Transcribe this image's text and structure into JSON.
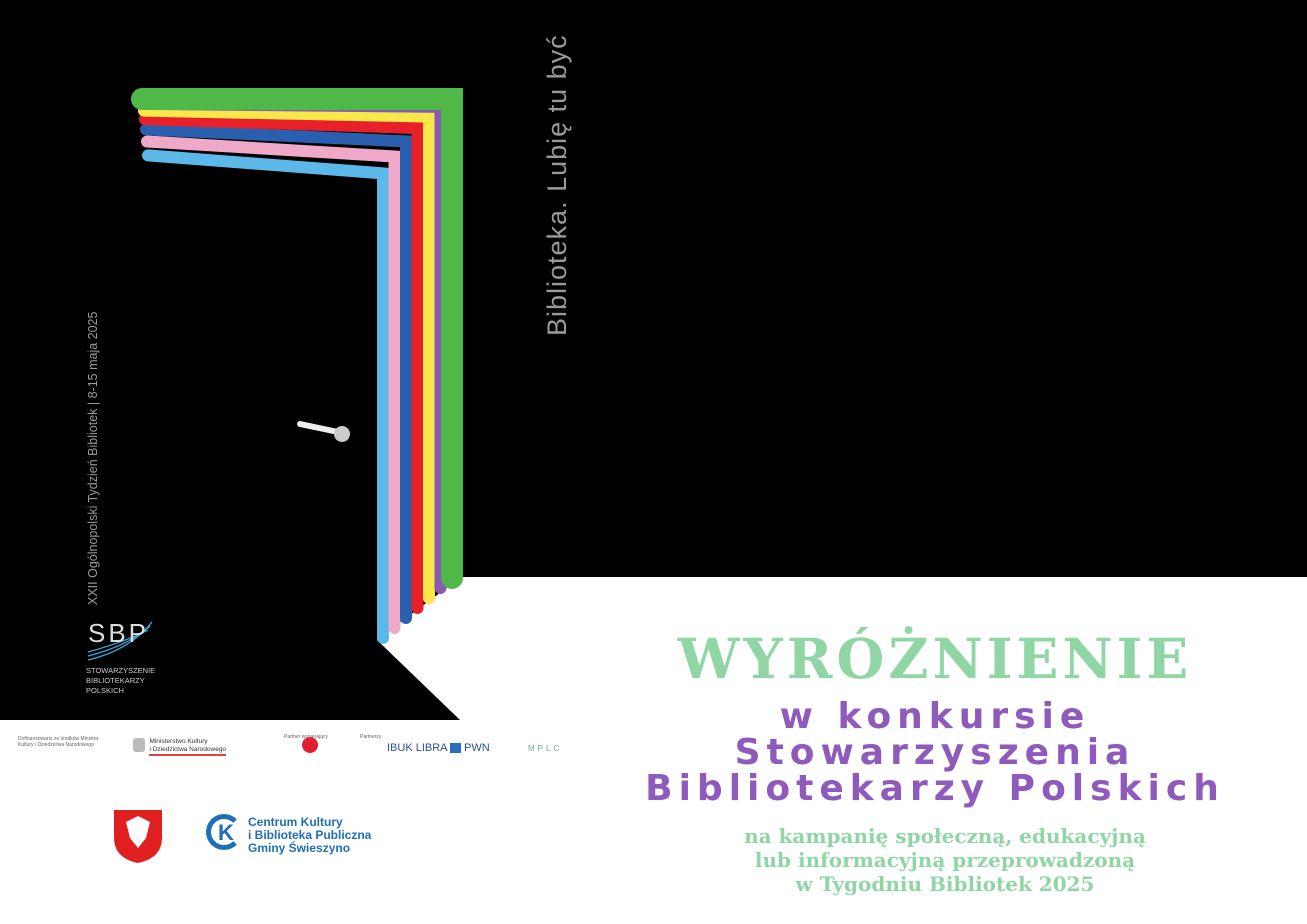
{
  "poster": {
    "slogan": "Biblioteka. Lubię tu być",
    "event": "XXII Ogólnopolski Tydzień Bibliotek | 8-15 maja 2025",
    "sbp_logo": "SBP",
    "sbp_name": [
      "STOWARZYSZENIE",
      "BIBLIOTEKARZY",
      "POLSKICH"
    ],
    "stripe_colors": [
      "#5bb8e8",
      "#f0a8c8",
      "#2a5fb0",
      "#e8202a",
      "#f8e84a",
      "#8a5ab0",
      "#50b848"
    ]
  },
  "sponsors": {
    "funding_note": "Dofinansowano ze środków Ministra Kultury i Dziedzictwa Narodowego",
    "ministry": [
      "Ministerstwo Kultury",
      "i Dziedzictwa Narodowego"
    ],
    "partner_label": "Partner wspierający",
    "partners_label": "Partnerzy",
    "ibuk": "IBUK LIBRA",
    "pwn": "PWN",
    "mplc": "MPLC"
  },
  "local": {
    "ck_line1": "Centrum Kultury",
    "ck_line2": "i Biblioteka Publiczna",
    "ck_line3": "Gminy Świeszyno"
  },
  "award": {
    "title": "WYRÓŻNIENIE",
    "line1": "w konkursie",
    "line2": "Stowarzyszenia",
    "line3": "Bibliotekarzy Polskich",
    "desc1": "na kampanię społeczną, edukacyjną",
    "desc2": "lub informacyjną przeprowadzoną",
    "desc3": "w Tygodniu Bibliotek 2025"
  },
  "colors": {
    "black": "#000000",
    "green": "#8fd6a4",
    "purple": "#8e5bbd"
  }
}
